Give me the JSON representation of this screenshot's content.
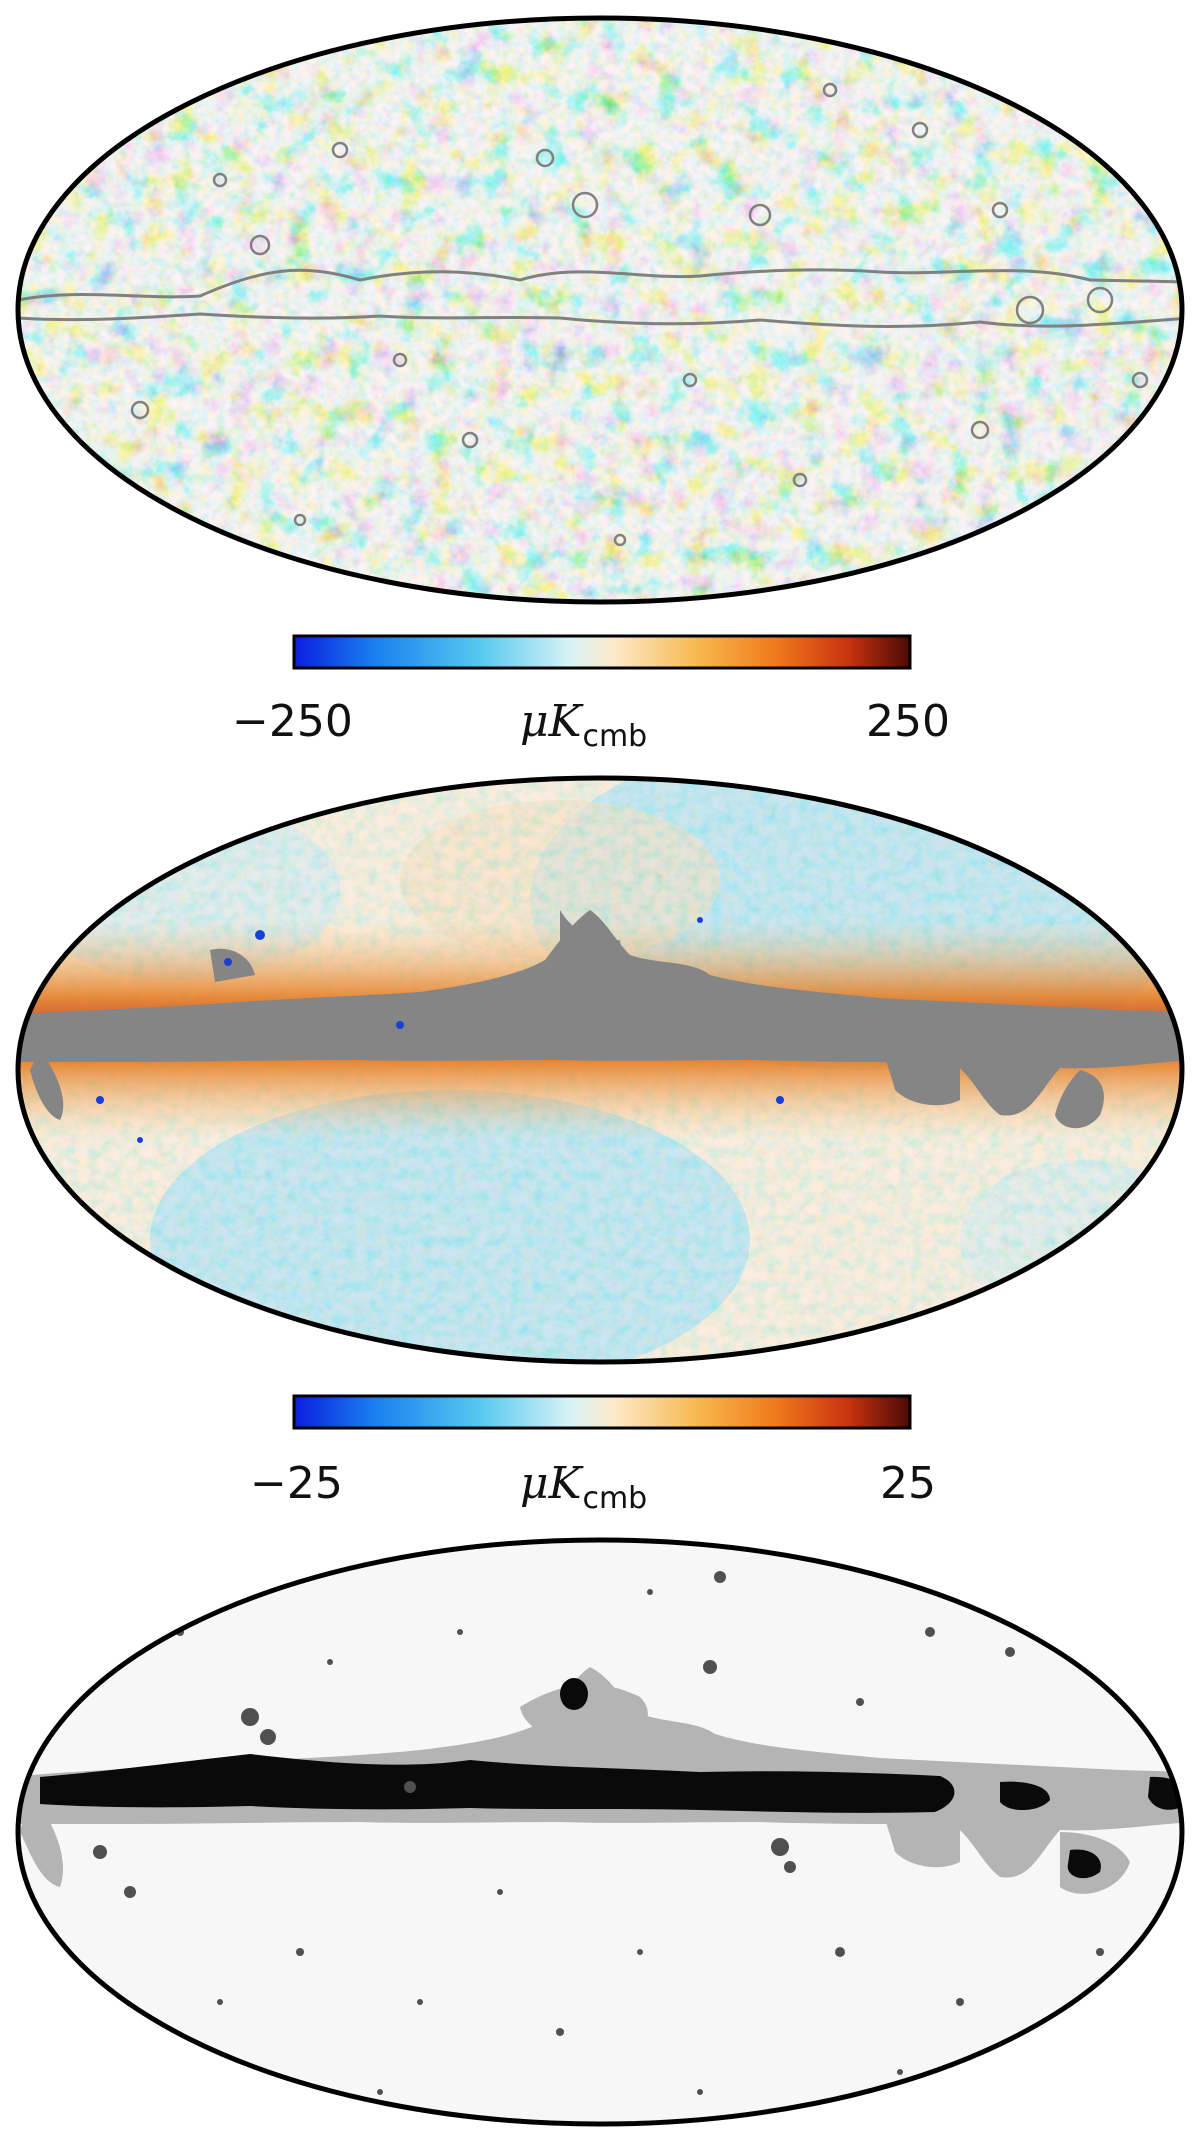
{
  "maps": [
    {
      "id": "cmb-temperature",
      "colorbar": {
        "min_label": "−250",
        "max_label": "250",
        "unit_main": "μK",
        "unit_sub": "cmb",
        "min_value": -250,
        "max_value": 250,
        "colors": [
          "#0a1ee0",
          "#1a7ff0",
          "#55c8ef",
          "#d8f3f6",
          "#fde9c8",
          "#f7b64c",
          "#f07a1c",
          "#c9330f",
          "#4a0a06"
        ]
      }
    },
    {
      "id": "residual-masked",
      "colorbar": {
        "min_label": "−25",
        "max_label": "25",
        "unit_main": "μK",
        "unit_sub": "cmb",
        "min_value": -25,
        "max_value": 25,
        "colors": [
          "#0a1ee0",
          "#1a7ff0",
          "#55c8ef",
          "#d8f3f6",
          "#fde9c8",
          "#f7b64c",
          "#f07a1c",
          "#c9330f",
          "#4a0a06"
        ]
      }
    },
    {
      "id": "mask-map",
      "colors": {
        "background": "#f7f7f7",
        "light_mask": "#b4b4b4",
        "dark_mask": "#505050",
        "core_mask": "#0a0a0a"
      }
    }
  ],
  "palette": {
    "outline": "#000000",
    "mask_gray": "#858585",
    "contour_gray": "#808080"
  }
}
